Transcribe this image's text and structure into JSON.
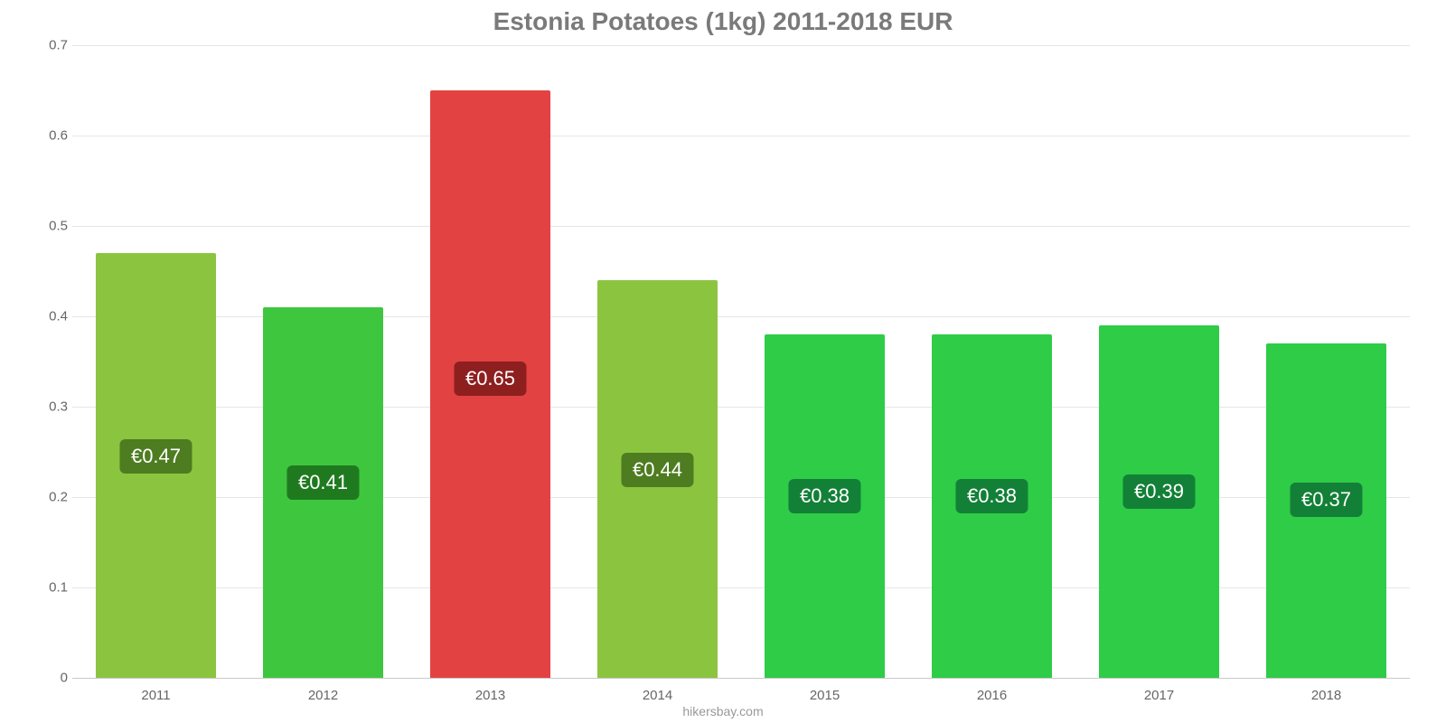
{
  "chart": {
    "type": "bar",
    "title": "Estonia Potatoes (1kg) 2011-2018 EUR",
    "title_fontsize": 28,
    "title_color": "#7a7a7a",
    "background_color": "#ffffff",
    "grid_color": "#e6e6e6",
    "baseline_color": "#c9c9c9",
    "axis_label_color": "#666666",
    "axis_label_fontsize": 15,
    "ylim": [
      0,
      0.7
    ],
    "yticks": [
      0,
      0.1,
      0.2,
      0.3,
      0.4,
      0.5,
      0.6,
      0.7
    ],
    "bar_width_ratio": 0.72,
    "bar_label_fontsize": 22,
    "bar_label_text_color": "#ffffff",
    "categories": [
      "2011",
      "2012",
      "2013",
      "2014",
      "2015",
      "2016",
      "2017",
      "2018"
    ],
    "values": [
      0.47,
      0.41,
      0.65,
      0.44,
      0.38,
      0.38,
      0.39,
      0.37
    ],
    "value_labels": [
      "€0.47",
      "€0.41",
      "€0.65",
      "€0.44",
      "€0.38",
      "€0.38",
      "€0.39",
      "€0.37"
    ],
    "bar_colors": [
      "#8bc53f",
      "#3fc63f",
      "#e34242",
      "#8bc53f",
      "#2ecc47",
      "#2ecc47",
      "#2ecc47",
      "#2ecc47"
    ],
    "label_bg_colors": [
      "#4e7c20",
      "#1f7a1f",
      "#8e1f1f",
      "#4e7c20",
      "#138037",
      "#138037",
      "#138037",
      "#138037"
    ],
    "attribution": "hikersbay.com",
    "attribution_color": "#999999"
  }
}
